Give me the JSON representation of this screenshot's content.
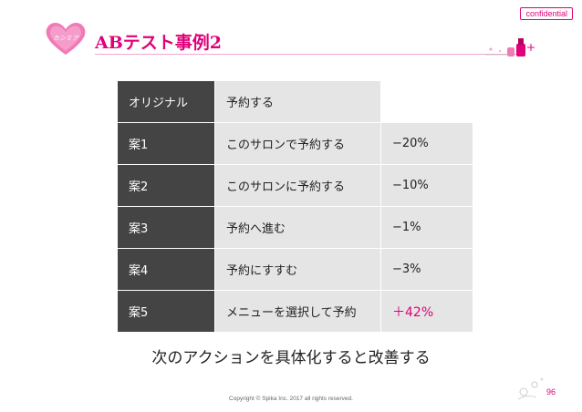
{
  "badge": "confidential",
  "header": {
    "title": "ABテスト事例2",
    "logo_text": "カシミア"
  },
  "table": {
    "rows": [
      {
        "label": "オリジナル",
        "text": "予約する",
        "change": ""
      },
      {
        "label": "案1",
        "text": "このサロンで予約する",
        "change": "−20%"
      },
      {
        "label": "案2",
        "text": "このサロンに予約する",
        "change": "−10%"
      },
      {
        "label": "案3",
        "text": "予約へ進む",
        "change": "−1%"
      },
      {
        "label": "案4",
        "text": "予約にすすむ",
        "change": "−3%"
      },
      {
        "label": "案5",
        "text": "メニューを選択して予約",
        "change": "＋42%"
      }
    ]
  },
  "conclusion": "次のアクションを具体化すると改善する",
  "footer": {
    "copyright": "Copyright © Spika Inc. 2017 all rights reserved.",
    "page_number": "96"
  },
  "colors": {
    "accent": "#e0007a",
    "label_cell": "#444444",
    "value_cell": "#e5e5e5"
  },
  "icons": [
    "heart-logo-icon",
    "cosmetics-decoration-icon",
    "flower-decoration-icon"
  ]
}
